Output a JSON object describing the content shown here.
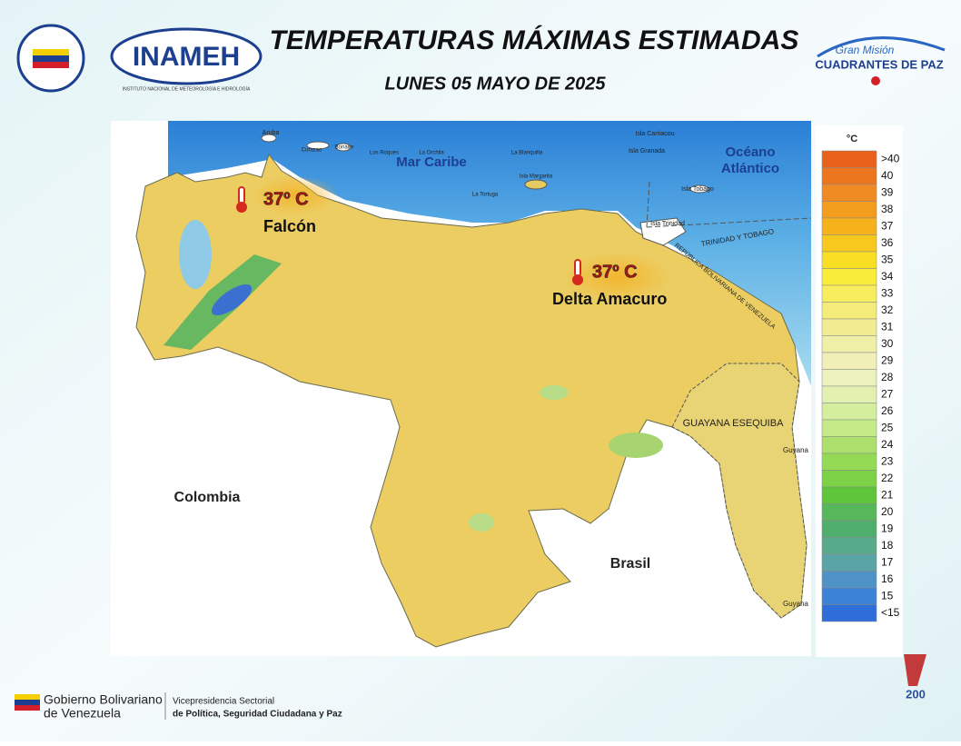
{
  "header": {
    "title": "TEMPERATURAS MÁXIMAS ESTIMADAS",
    "subtitle": "LUNES 05 MAYO DE 2025",
    "left_logo": "INAMEH",
    "left_logo_caption": "INSTITUTO NACIONAL DE METEOROLOGÍA E HIDROLOGÍA",
    "right_logo_top": "Gran Misión",
    "right_logo_main": "CUADRANTES DE PAZ"
  },
  "map": {
    "labels": {
      "sea": "Mar Caribe",
      "ocean_1": "Océano",
      "ocean_2": "Atlántico",
      "colombia": "Colombia",
      "brasil": "Brasil",
      "guayana": "GUAYANA ESEQUIBA",
      "trinidad_border": "TRINIDAD Y TOBAGO",
      "venezuela_border": "REPÚBLICA BOLIVARIANA DE VENEZUELA",
      "guyana_1": "Guyana",
      "guyana_2": "Guyana",
      "aruba": "Aruba",
      "curacao": "Curazao",
      "bonaire": "Bonaire",
      "los_roques": "Los Roques",
      "la_orchila": "La Orchila",
      "la_tortuga": "La Tortuga",
      "la_blanquilla": "La Blanquilla",
      "margarita": "Isla Margarita",
      "carriacou": "Isla Carriacou",
      "granada": "Isla Granada",
      "tobago": "Isla Tobago",
      "trinidad": "Isla Trinidad"
    },
    "annotations": [
      {
        "value": "37º C",
        "place": "Falcón"
      },
      {
        "value": "37º C",
        "place": "Delta Amacuro"
      }
    ]
  },
  "legend": {
    "unit": "°C",
    "items": [
      {
        "label": ">40",
        "color": "#e8621a"
      },
      {
        "label": "40",
        "color": "#ec761e"
      },
      {
        "label": "39",
        "color": "#f08a22"
      },
      {
        "label": "38",
        "color": "#f39d1f"
      },
      {
        "label": "37",
        "color": "#f5b21b"
      },
      {
        "label": "36",
        "color": "#f7c81e"
      },
      {
        "label": "35",
        "color": "#f9df24"
      },
      {
        "label": "34",
        "color": "#faec3b"
      },
      {
        "label": "33",
        "color": "#f7ee5e"
      },
      {
        "label": "32",
        "color": "#f3ec78"
      },
      {
        "label": "31",
        "color": "#f1ec92"
      },
      {
        "label": "30",
        "color": "#efefa8"
      },
      {
        "label": "29",
        "color": "#f0efb8"
      },
      {
        "label": "28",
        "color": "#ecf2bb"
      },
      {
        "label": "27",
        "color": "#e2f0b0"
      },
      {
        "label": "26",
        "color": "#d4ee9e"
      },
      {
        "label": "25",
        "color": "#c5ea88"
      },
      {
        "label": "24",
        "color": "#addf6c"
      },
      {
        "label": "23",
        "color": "#95da55"
      },
      {
        "label": "22",
        "color": "#7bd246"
      },
      {
        "label": "21",
        "color": "#5fc53b"
      },
      {
        "label": "20",
        "color": "#56b85a"
      },
      {
        "label": "19",
        "color": "#4fae6c"
      },
      {
        "label": "18",
        "color": "#58ab8a"
      },
      {
        "label": "17",
        "color": "#5aa3a6"
      },
      {
        "label": "16",
        "color": "#4f93c6"
      },
      {
        "label": "15",
        "color": "#3c82d6"
      },
      {
        "label": "<15",
        "color": "#2f6ed8"
      }
    ]
  },
  "footer": {
    "gov_1": "Gobierno Bolivariano",
    "gov_2": "de Venezuela",
    "vice_1": "Vicepresidencia Sectorial",
    "vice_2": "de Política, Seguridad Ciudadana y Paz",
    "badge": "200"
  }
}
